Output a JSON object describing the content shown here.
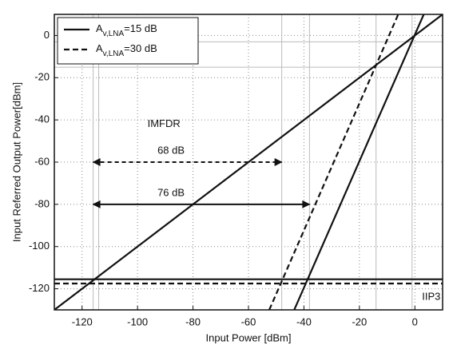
{
  "chart_data": {
    "type": "line",
    "xlabel": "Input Power [dBm]",
    "ylabel": "Input Referred Output Power[dBm]",
    "xlim": [
      -130,
      10
    ],
    "ylim": [
      -130,
      10
    ],
    "xticks": [
      -120,
      -100,
      -80,
      -60,
      -40,
      -20,
      0
    ],
    "yticks": [
      -120,
      -100,
      -80,
      -60,
      -40,
      -20,
      0
    ],
    "grid": true,
    "legend": "upper left",
    "series": [
      {
        "name": [
          "A",
          "v,LNA",
          "=15 dB"
        ],
        "color": "#111111",
        "dash": false,
        "x": [
          -130,
          10,
          null,
          -43.5,
          3.2,
          null,
          -130,
          10
        ],
        "values": [
          -130,
          10,
          null,
          -130,
          10,
          null,
          -115.5,
          -115.5
        ]
      },
      {
        "name": [
          "A",
          "v,LNA",
          "=30 dB"
        ],
        "color": "#111111",
        "dash": true,
        "x": [
          -52.5,
          -6,
          null,
          -130,
          10
        ],
        "values": [
          -130,
          10,
          null,
          -117.5,
          -117.5
        ]
      }
    ],
    "guide_x": [
      -116,
      -114,
      -48,
      -38,
      -14,
      -1
    ],
    "guide_y": [
      -3,
      -15
    ],
    "arrows": [
      {
        "x": [
          -116,
          -48
        ],
        "y": -60,
        "dash": true,
        "label": "68  dB"
      },
      {
        "x": [
          -116,
          -38
        ],
        "y": -80,
        "dash": false,
        "label": "76  dB"
      }
    ],
    "annotations": [
      {
        "text": "IMFDR",
        "x": -116,
        "y": -42
      },
      {
        "text": "IIP3",
        "x": -17,
        "y": -124
      }
    ]
  }
}
